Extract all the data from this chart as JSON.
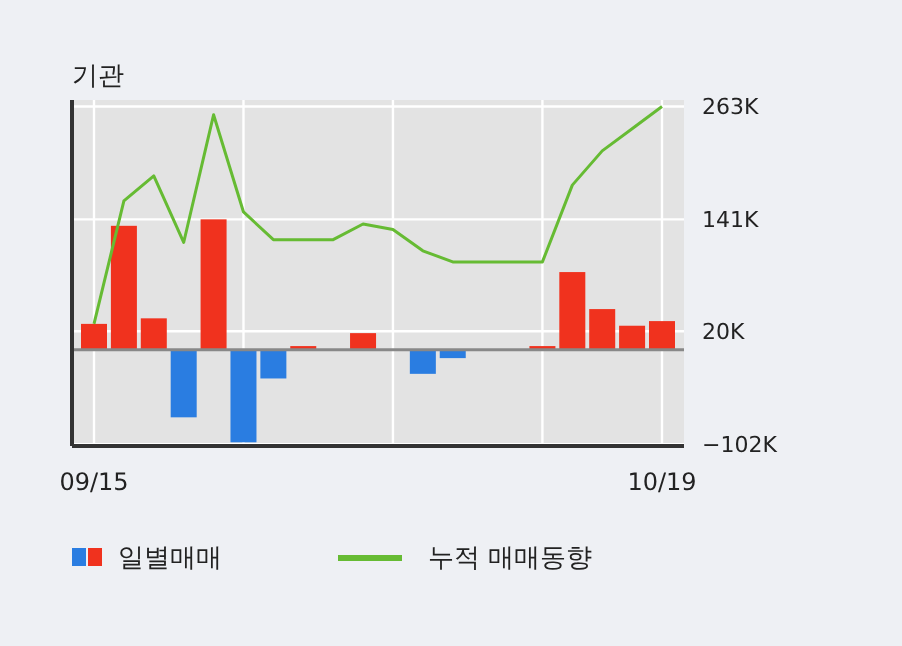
{
  "chart_data": {
    "type": "bar",
    "title": "기관",
    "categories": [
      "09/15",
      null,
      null,
      null,
      null,
      null,
      null,
      null,
      null,
      null,
      null,
      null,
      null,
      null,
      null,
      null,
      null,
      null,
      null,
      "10/19"
    ],
    "series": [
      {
        "name": "일별매매",
        "colors": [
          "#f0321e",
          "#f0321e",
          "#f0321e",
          "#2a7de1",
          "#f0321e",
          "#2a7de1",
          "#2a7de1",
          "#f0321e",
          "#f0321e",
          "#f0321e",
          "#f0321e",
          "#2a7de1",
          "#2a7de1",
          "#f0321e",
          "#f0321e",
          "#f0321e",
          "#f0321e",
          "#f0321e",
          "#f0321e",
          "#f0321e"
        ],
        "values": [
          28,
          134,
          34,
          -73,
          141,
          -100,
          -31,
          4,
          0,
          18,
          0,
          -26,
          -9,
          0,
          0,
          4,
          84,
          44,
          26,
          31
        ]
      },
      {
        "name": "누적 매매동향",
        "type": "line",
        "color": "#66bb33",
        "values": [
          28,
          161,
          188,
          116,
          254,
          149,
          119,
          119,
          119,
          136,
          130,
          107,
          95,
          95,
          95,
          95,
          178,
          215,
          239,
          263
        ]
      }
    ],
    "ylim": [
      -104,
      270
    ],
    "yticks": [
      {
        "value": -102,
        "label": "−102K"
      },
      {
        "value": 20,
        "label": "20K"
      },
      {
        "value": 141,
        "label": "141K"
      },
      {
        "value": 263,
        "label": "263K"
      }
    ],
    "grid": true,
    "legend": "bottom"
  }
}
